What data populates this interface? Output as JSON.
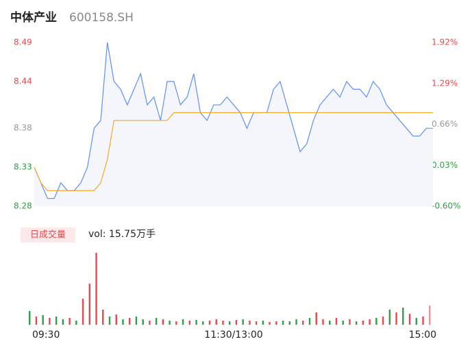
{
  "header": {
    "name": "中体产业",
    "code": "600158.SH"
  },
  "chart_data": [
    {
      "type": "line",
      "x": [
        0,
        4,
        8,
        12,
        16,
        20,
        24,
        28,
        32,
        36,
        40,
        44,
        48,
        52,
        56,
        60,
        64,
        68,
        72,
        76,
        80,
        84,
        88,
        92,
        96,
        100,
        104,
        108,
        112,
        116,
        120,
        124,
        128,
        132,
        136,
        140,
        144,
        148,
        152,
        156,
        160,
        164,
        168,
        172,
        176,
        180,
        184,
        188,
        192,
        196,
        200,
        204,
        208,
        212,
        216,
        220,
        224,
        228,
        232,
        236,
        240
      ],
      "xlim": [
        0,
        240
      ],
      "xticks": [
        {
          "value": 0,
          "label": "09:30"
        },
        {
          "value": 120,
          "label": "11:30/13:00"
        },
        {
          "value": 240,
          "label": "15:00"
        }
      ],
      "series": [
        {
          "name": "price",
          "color": "#5b8ff9",
          "values": [
            8.33,
            8.31,
            8.29,
            8.29,
            8.31,
            8.3,
            8.3,
            8.31,
            8.33,
            8.38,
            8.39,
            8.49,
            8.44,
            8.43,
            8.41,
            8.43,
            8.45,
            8.41,
            8.42,
            8.39,
            8.44,
            8.44,
            8.41,
            8.42,
            8.45,
            8.4,
            8.39,
            8.41,
            8.41,
            8.42,
            8.41,
            8.4,
            8.38,
            8.4,
            8.4,
            8.4,
            8.43,
            8.44,
            8.41,
            8.38,
            8.35,
            8.36,
            8.39,
            8.41,
            8.42,
            8.43,
            8.42,
            8.44,
            8.43,
            8.43,
            8.42,
            8.44,
            8.43,
            8.41,
            8.4,
            8.39,
            8.38,
            8.37,
            8.37,
            8.38,
            8.38
          ]
        },
        {
          "name": "average",
          "color": "#f5a623",
          "values": [
            8.33,
            8.31,
            8.3,
            8.3,
            8.3,
            8.3,
            8.3,
            8.3,
            8.3,
            8.3,
            8.31,
            8.34,
            8.39,
            8.39,
            8.39,
            8.39,
            8.39,
            8.39,
            8.39,
            8.39,
            8.39,
            8.4,
            8.4,
            8.4,
            8.4,
            8.4,
            8.4,
            8.4,
            8.4,
            8.4,
            8.4,
            8.4,
            8.4,
            8.4,
            8.4,
            8.4,
            8.4,
            8.4,
            8.4,
            8.4,
            8.4,
            8.4,
            8.4,
            8.4,
            8.4,
            8.4,
            8.4,
            8.4,
            8.4,
            8.4,
            8.4,
            8.4,
            8.4,
            8.4,
            8.4,
            8.4,
            8.4,
            8.4,
            8.4,
            8.4,
            8.4
          ]
        }
      ],
      "ylim": [
        8.28,
        8.49
      ],
      "yticks": [
        8.28,
        8.33,
        8.38,
        8.44,
        8.49
      ],
      "y2lim": [
        -0.6,
        1.92
      ],
      "y2ticks": [
        {
          "value": -0.6,
          "label": "-0.60%"
        },
        {
          "value": 0.03,
          "label": "0.03%"
        },
        {
          "value": 0.66,
          "label": "0.66%"
        },
        {
          "value": 1.29,
          "label": "1.29%"
        },
        {
          "value": 1.92,
          "label": "1.92%"
        }
      ]
    },
    {
      "type": "bar",
      "title": "日成交量",
      "subtitle": "vol: 15.75万手",
      "x": [
        0,
        4,
        8,
        12,
        16,
        20,
        24,
        28,
        32,
        36,
        40,
        44,
        48,
        52,
        56,
        60,
        64,
        68,
        72,
        76,
        80,
        84,
        88,
        92,
        96,
        100,
        104,
        108,
        112,
        116,
        120,
        124,
        128,
        132,
        136,
        140,
        144,
        148,
        152,
        156,
        160,
        164,
        168,
        172,
        176,
        180,
        184,
        188,
        192,
        196,
        200,
        204,
        208,
        212,
        216,
        220,
        224,
        228,
        232,
        236,
        240
      ],
      "values": [
        20,
        12,
        14,
        10,
        12,
        8,
        10,
        6,
        38,
        60,
        105,
        22,
        12,
        15,
        8,
        10,
        12,
        8,
        6,
        10,
        8,
        6,
        5,
        8,
        6,
        7,
        5,
        6,
        8,
        6,
        5,
        7,
        8,
        6,
        5,
        6,
        4,
        5,
        6,
        5,
        8,
        6,
        10,
        18,
        8,
        6,
        10,
        6,
        8,
        5,
        6,
        8,
        10,
        12,
        22,
        18,
        25,
        16,
        10,
        12,
        28
      ],
      "colors": [
        "#2ea043",
        "#e8474d",
        "#2ea043",
        "#e8474d",
        "#2ea043",
        "#2ea043",
        "#e8474d",
        "#2ea043",
        "#e8474d",
        "#e8474d",
        "#e8474d",
        "#e8474d",
        "#2ea043",
        "#e8474d",
        "#2ea043",
        "#e8474d",
        "#2ea043",
        "#2ea043",
        "#e8474d",
        "#2ea043",
        "#e8474d",
        "#2ea043",
        "#e8474d",
        "#2ea043",
        "#e8474d",
        "#2ea043",
        "#2ea043",
        "#e8474d",
        "#e8474d",
        "#e8474d",
        "#2ea043",
        "#e8474d",
        "#2ea043",
        "#e8474d",
        "#e8474d",
        "#2ea043",
        "#e8474d",
        "#e8474d",
        "#2ea043",
        "#2ea043",
        "#2ea043",
        "#e8474d",
        "#2ea043",
        "#e8474d",
        "#e8474d",
        "#2ea043",
        "#e8474d",
        "#2ea043",
        "#e8474d",
        "#2ea043",
        "#e8474d",
        "#e8474d",
        "#2ea043",
        "#e8474d",
        "#2ea043",
        "#e8474d",
        "#2ea043",
        "#e8474d",
        "#2ea043",
        "#e8474d",
        "#f09090"
      ]
    }
  ]
}
